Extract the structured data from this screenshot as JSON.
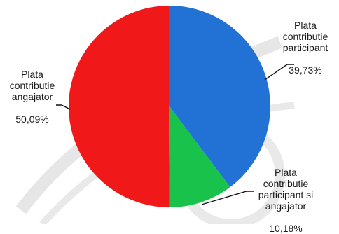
{
  "chart_data": {
    "type": "pie",
    "slices": [
      {
        "label": "Plata\ncontributie\nparticipant",
        "value": 39.73,
        "value_label": "39,73%",
        "color": "#2272d6"
      },
      {
        "label": "Plata\ncontributie\nparticipant si\nangajator",
        "value": 10.18,
        "value_label": "10,18%",
        "color": "#18c24b"
      },
      {
        "label": "Plata\ncontributie\nangajator",
        "value": 50.09,
        "value_label": "50,09%",
        "color": "#f01818"
      }
    ],
    "start_angle": "12 o'clock",
    "direction": "clockwise",
    "legend": "none"
  }
}
